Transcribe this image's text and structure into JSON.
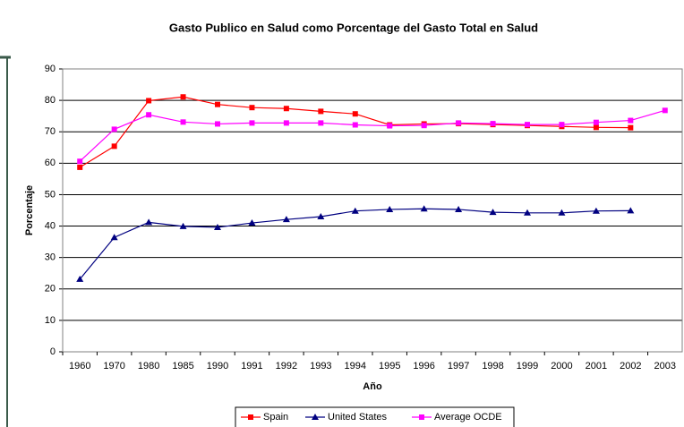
{
  "chart_data": {
    "type": "line",
    "title": "Gasto Publico en Salud como Porcentage del Gasto Total en Salud",
    "x_label": "Año",
    "y_label": "Porcentaje",
    "categories": [
      "1960",
      "1970",
      "1980",
      "1985",
      "1990",
      "1991",
      "1992",
      "1993",
      "1994",
      "1995",
      "1996",
      "1997",
      "1998",
      "1999",
      "2000",
      "2001",
      "2002",
      "2003"
    ],
    "series": [
      {
        "name": "Spain",
        "color": "#ff0000",
        "marker": "square",
        "values": [
          58.7,
          65.4,
          79.9,
          81.1,
          78.7,
          77.7,
          77.4,
          76.5,
          75.7,
          72.2,
          72.5,
          72.6,
          72.3,
          72.0,
          71.7,
          71.4,
          71.3,
          null
        ]
      },
      {
        "name": "United States",
        "color": "#000080",
        "marker": "triangle",
        "values": [
          23.1,
          36.4,
          41.2,
          39.9,
          39.6,
          41.0,
          42.1,
          43.0,
          44.8,
          45.3,
          45.5,
          45.3,
          44.4,
          44.2,
          44.2,
          44.8,
          44.9,
          null
        ]
      },
      {
        "name": "Average OCDE",
        "color": "#ff00ff",
        "marker": "square",
        "values": [
          60.6,
          70.8,
          75.4,
          73.1,
          72.5,
          72.8,
          72.8,
          72.8,
          72.2,
          71.9,
          72.0,
          72.8,
          72.6,
          72.3,
          72.3,
          73.0,
          73.6,
          76.8
        ]
      }
    ],
    "ylim": [
      0,
      90
    ],
    "yticks": [
      0,
      10,
      20,
      30,
      40,
      50,
      60,
      70,
      80,
      90
    ],
    "grid": true,
    "legend": "bottom"
  }
}
